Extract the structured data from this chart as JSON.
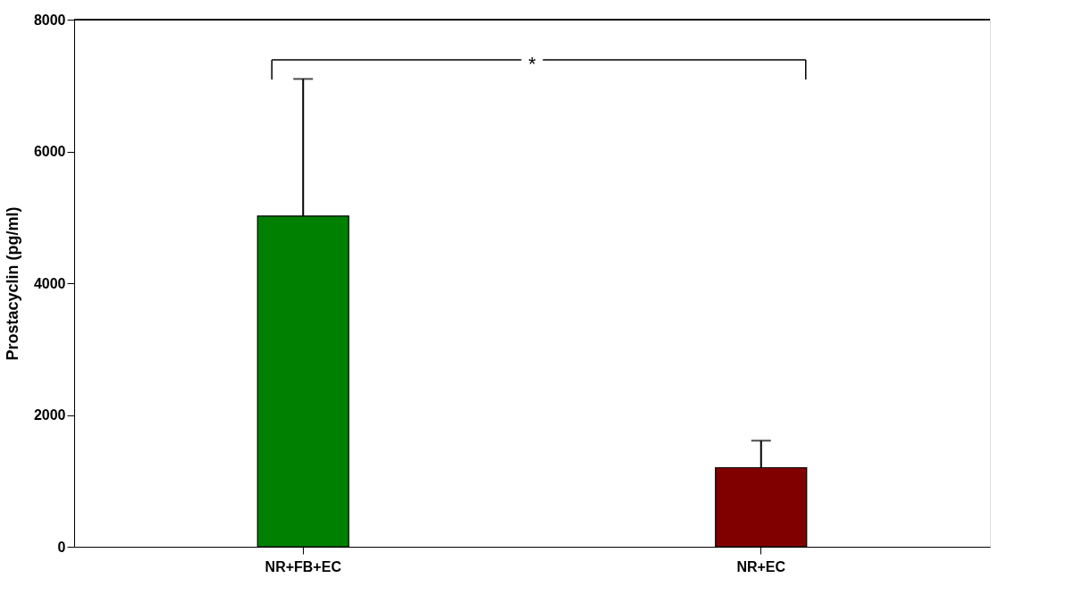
{
  "chart_data": {
    "type": "bar",
    "ylabel": "Prostacyclin (pg/ml)",
    "categories": [
      "NR+FB+EC",
      "NR+EC"
    ],
    "values": [
      5020,
      1200
    ],
    "colors": [
      "#008000",
      "#800000"
    ],
    "errors": [
      [
        5020,
        7100
      ],
      [
        1200,
        1610
      ]
    ],
    "ylim": [
      0,
      8000
    ],
    "yticks": [
      0,
      2000,
      4000,
      6000,
      8000
    ],
    "annotations": [
      "*"
    ],
    "grid": false
  }
}
